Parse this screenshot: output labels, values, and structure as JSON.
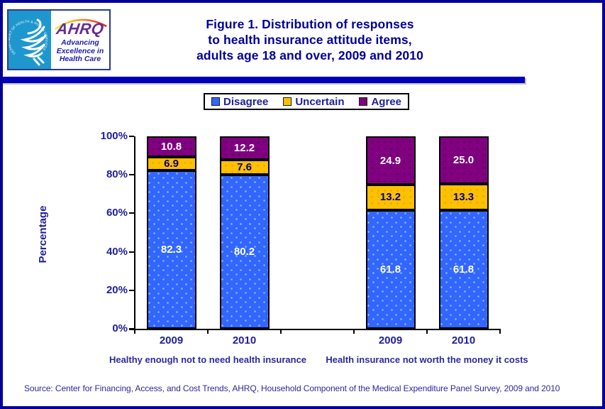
{
  "header": {
    "title_lines": [
      "Figure 1. Distribution of responses",
      "to health insurance attitude items,",
      "adults age 18 and over, 2009 and 2010"
    ],
    "logo": {
      "hhs_circle_text": "DEPARTMENT OF HEALTH & HUMAN SERVICES - USA",
      "ahrq_acronym": "AHRQ",
      "ahrq_tagline_lines": [
        "Advancing",
        "Excellence in",
        "Health Care"
      ]
    }
  },
  "chart_data": {
    "type": "bar",
    "stacked": true,
    "unit": "percent",
    "title": "Figure 1. Distribution of responses to health insurance attitude items, adults age 18 and over, 2009 and 2010",
    "ylabel": "Percentage",
    "ylim": [
      0,
      100
    ],
    "ytick_labels": [
      "0%",
      "20%",
      "40%",
      "60%",
      "80%",
      "100%"
    ],
    "grid": false,
    "legend_position": "top-center",
    "categories": [
      "2009",
      "2010",
      "2009",
      "2010"
    ],
    "group_labels": [
      "Healthy enough not to need health insurance",
      "Health insurance not worth the money it costs"
    ],
    "series": [
      {
        "name": "Disagree",
        "color": "#3366FF",
        "values": [
          82.3,
          80.2,
          61.8,
          61.8
        ]
      },
      {
        "name": "Uncertain",
        "color": "#FFC000",
        "values": [
          6.9,
          7.6,
          13.2,
          13.3
        ]
      },
      {
        "name": "Agree",
        "color": "#800080",
        "values": [
          10.8,
          12.2,
          24.9,
          25.0
        ]
      }
    ]
  },
  "footer": {
    "source": "Source: Center for Financing, Access, and Cost Trends, AHRQ, Household Component of the Medical Expenditure Panel Survey, 2009 and 2010"
  },
  "colors": {
    "accent_navy": "#000099",
    "divider": "#0000B8",
    "axis": "#000000",
    "label_navy": "#20209A",
    "value_on_dark": "#FFFFFF",
    "value_on_yellow": "#000080",
    "hhs_blue": "#1E97CF",
    "ahrq_purple": "#662D91"
  }
}
